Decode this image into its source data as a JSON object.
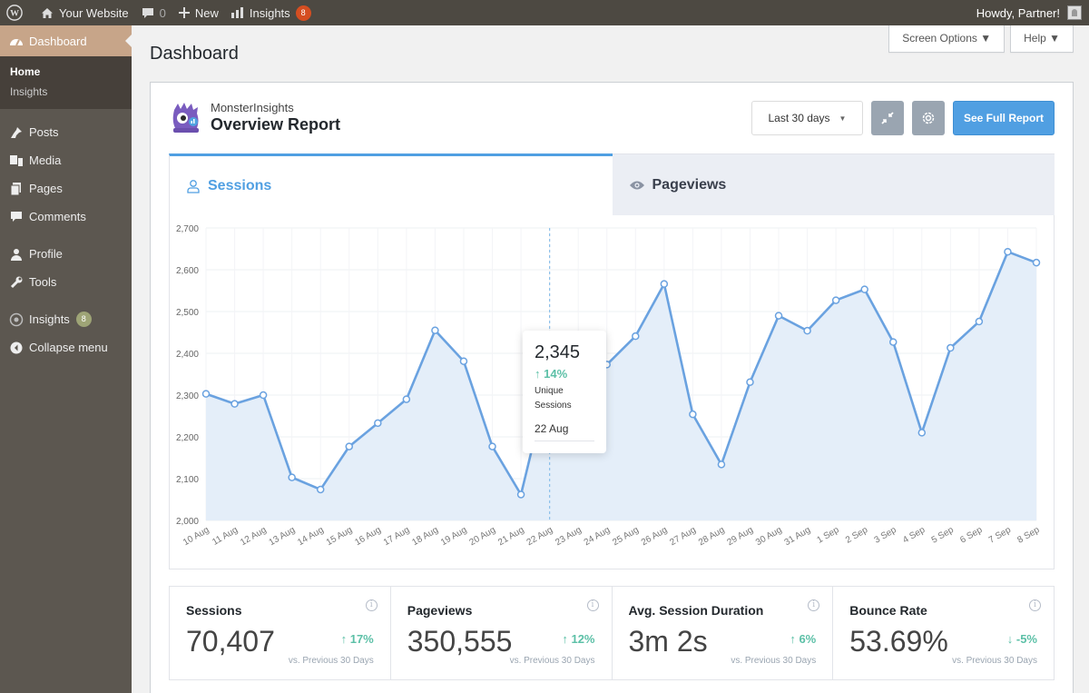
{
  "adminbar": {
    "site_name": "Your Website",
    "comments_count": "0",
    "new_label": "New",
    "insights_label": "Insights",
    "insights_count": "8",
    "howdy": "Howdy, Partner!"
  },
  "sidebar": {
    "dashboard": "Dashboard",
    "submenu": [
      "Home",
      "Insights"
    ],
    "items": [
      {
        "label": "Posts",
        "icon": "pin-icon"
      },
      {
        "label": "Media",
        "icon": "media-icon"
      },
      {
        "label": "Pages",
        "icon": "pages-icon"
      },
      {
        "label": "Comments",
        "icon": "comment-icon"
      },
      {
        "label": "Profile",
        "icon": "user-icon"
      },
      {
        "label": "Tools",
        "icon": "wrench-icon"
      },
      {
        "label": "Insights",
        "icon": "insights-icon",
        "count": "8"
      },
      {
        "label": "Collapse menu",
        "icon": "collapse-icon"
      }
    ]
  },
  "header": {
    "title": "Dashboard",
    "screen_options": "Screen Options ▼",
    "help": "Help ▼"
  },
  "report": {
    "brand": "MonsterInsights",
    "title": "Overview Report",
    "date_range": "Last 30 days",
    "full_report": "See Full Report",
    "tab_sessions": "Sessions",
    "tab_pageviews": "Pageviews"
  },
  "tooltip": {
    "value": "2,345",
    "change": "14%",
    "label": "Unique Sessions",
    "date": "22 Aug"
  },
  "stats": [
    {
      "label": "Sessions",
      "value": "70,407",
      "change": "17%",
      "direction": "up",
      "compare": "vs. Previous 30 Days"
    },
    {
      "label": "Pageviews",
      "value": "350,555",
      "change": "12%",
      "direction": "up",
      "compare": "vs. Previous 30 Days"
    },
    {
      "label": "Avg. Session Duration",
      "value": "3m 2s",
      "change": "6%",
      "direction": "up",
      "compare": "vs. Previous 30 Days"
    },
    {
      "label": "Bounce Rate",
      "value": "53.69%",
      "change": "-5%",
      "direction": "down",
      "compare": "vs. Previous 30 Days"
    }
  ],
  "colors": {
    "accent": "#509fe2",
    "line": "#6aa2e0",
    "fill": "#e3edf9",
    "positive": "#5cc0a7"
  },
  "chart_data": {
    "type": "area",
    "x": [
      "10 Aug",
      "11 Aug",
      "12 Aug",
      "13 Aug",
      "14 Aug",
      "15 Aug",
      "16 Aug",
      "17 Aug",
      "18 Aug",
      "19 Aug",
      "20 Aug",
      "21 Aug",
      "22 Aug",
      "23 Aug",
      "24 Aug",
      "25 Aug",
      "26 Aug",
      "27 Aug",
      "28 Aug",
      "29 Aug",
      "30 Aug",
      "31 Aug",
      "1 Sep",
      "2 Sep",
      "3 Sep",
      "4 Sep",
      "5 Sep",
      "6 Sep",
      "7 Sep",
      "8 Sep"
    ],
    "series": [
      {
        "name": "Unique Sessions",
        "values": [
          2303,
          2279,
          2300,
          2103,
          2074,
          2177,
          2233,
          2290,
          2455,
          2381,
          2177,
          2062,
          2345,
          2326,
          2373,
          2441,
          2566,
          2254,
          2134,
          2331,
          2490,
          2454,
          2527,
          2553,
          2427,
          2210,
          2413,
          2476,
          2643,
          2617
        ]
      }
    ],
    "ylim": [
      2000,
      2700
    ],
    "yticks": [
      "2,000",
      "2,100",
      "2,200",
      "2,300",
      "2,400",
      "2,500",
      "2,600",
      "2,700"
    ],
    "grid": true,
    "highlight_index": 12
  }
}
